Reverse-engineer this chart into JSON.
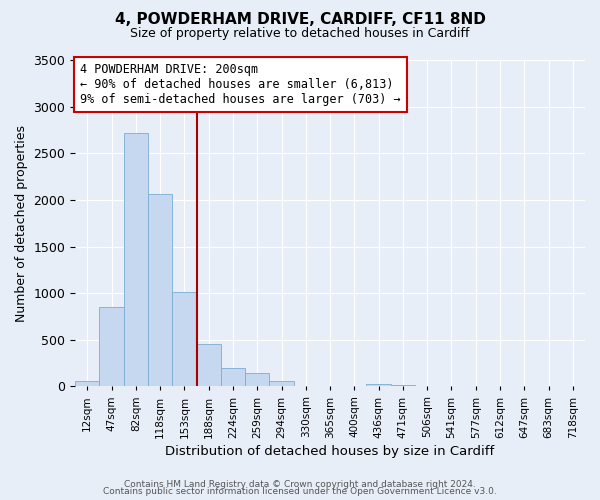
{
  "title": "4, POWDERHAM DRIVE, CARDIFF, CF11 8ND",
  "subtitle": "Size of property relative to detached houses in Cardiff",
  "xlabel": "Distribution of detached houses by size in Cardiff",
  "ylabel": "Number of detached properties",
  "bar_labels": [
    "12sqm",
    "47sqm",
    "82sqm",
    "118sqm",
    "153sqm",
    "188sqm",
    "224sqm",
    "259sqm",
    "294sqm",
    "330sqm",
    "365sqm",
    "400sqm",
    "436sqm",
    "471sqm",
    "506sqm",
    "541sqm",
    "577sqm",
    "612sqm",
    "647sqm",
    "683sqm",
    "718sqm"
  ],
  "bar_values": [
    55,
    850,
    2720,
    2060,
    1010,
    460,
    200,
    145,
    60,
    0,
    0,
    0,
    30,
    20,
    0,
    0,
    0,
    0,
    0,
    0,
    0
  ],
  "bar_color": "#c5d8f0",
  "bar_edge_color": "#7aadd4",
  "vline_color": "#aa0000",
  "annotation_title": "4 POWDERHAM DRIVE: 200sqm",
  "annotation_line1": "← 90% of detached houses are smaller (6,813)",
  "annotation_line2": "9% of semi-detached houses are larger (703) →",
  "annotation_box_color": "#cc0000",
  "vline_position": 4.5,
  "ylim": [
    0,
    3500
  ],
  "yticks": [
    0,
    500,
    1000,
    1500,
    2000,
    2500,
    3000,
    3500
  ],
  "bg_color": "#e8eef8",
  "plot_bg_color": "#e8eef8",
  "grid_color": "#ffffff",
  "footer1": "Contains HM Land Registry data © Crown copyright and database right 2024.",
  "footer2": "Contains public sector information licensed under the Open Government Licence v3.0."
}
